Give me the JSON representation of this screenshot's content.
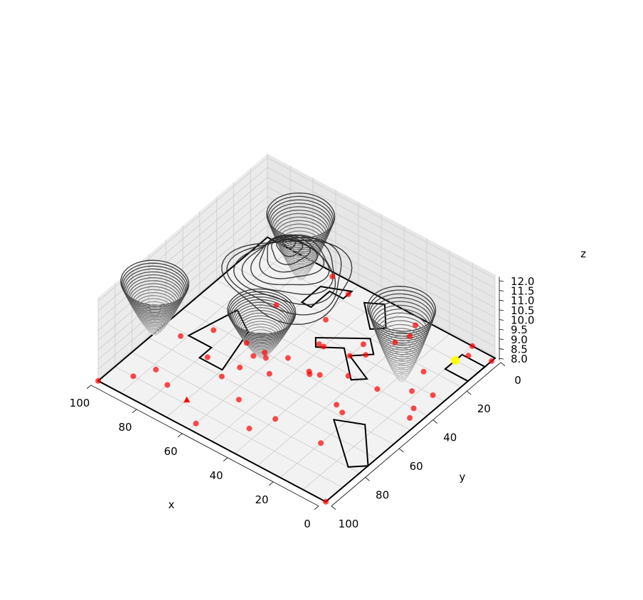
{
  "chart_data": {
    "type": "scatter",
    "projection": "3d",
    "title": "",
    "xlabel": "x",
    "ylabel": "y",
    "zlabel": "z",
    "xlim": [
      0,
      100
    ],
    "ylim": [
      0,
      100
    ],
    "zlim": [
      7.9,
      12.2
    ],
    "x_ticks": [
      "0",
      "20",
      "40",
      "60",
      "80",
      "100"
    ],
    "y_ticks": [
      "0",
      "20",
      "40",
      "60",
      "80",
      "100"
    ],
    "z_ticks": [
      "8.0",
      "8.5",
      "9.0",
      "9.5",
      "10.0",
      "10.5",
      "11.0",
      "11.5",
      "12.0"
    ],
    "grid": true,
    "colors": {
      "points": "#ff0000",
      "start_marker": "#ff0000",
      "goal_marker": "#ffff00",
      "walls": "#000000",
      "contours_dark": "#2a2a2a",
      "contours_light": "#d8d8d8",
      "pane": "#f2f2f2"
    },
    "boundary": [
      [
        0,
        0
      ],
      [
        100,
        0
      ],
      [
        100,
        100
      ],
      [
        0,
        100
      ]
    ],
    "obstacles": [
      [
        [
          85,
          38
        ],
        [
          90,
          60
        ],
        [
          80,
          60
        ],
        [
          80,
          67
        ],
        [
          70,
          67
        ],
        [
          75,
          45
        ]
      ],
      [
        [
          14,
          58
        ],
        [
          24,
          63
        ],
        [
          5,
          80
        ],
        [
          0,
          75
        ]
      ],
      [
        [
          28,
          38
        ],
        [
          32,
          42
        ],
        [
          44,
          30
        ],
        [
          52,
          36
        ],
        [
          55,
          32
        ],
        [
          40,
          20
        ],
        [
          34,
          26
        ],
        [
          40,
          32
        ]
      ],
      [
        [
          60,
          4
        ],
        [
          70,
          9
        ],
        [
          70,
          20
        ],
        [
          66,
          20
        ],
        [
          66,
          9
        ],
        [
          60,
          9
        ]
      ],
      [
        [
          47,
          2
        ],
        [
          53,
          6
        ],
        [
          43,
          16
        ],
        [
          39,
          12
        ]
      ],
      [
        [
          0,
          16
        ],
        [
          10,
          16
        ],
        [
          10,
          6
        ],
        [
          0,
          6
        ]
      ]
    ],
    "points": [
      [
        0,
        100
      ],
      [
        0,
        2
      ],
      [
        10,
        0
      ],
      [
        8,
        5
      ],
      [
        6,
        40
      ],
      [
        4,
        45
      ],
      [
        15,
        22
      ],
      [
        12,
        33
      ],
      [
        22,
        40
      ],
      [
        24,
        58
      ],
      [
        28,
        56
      ],
      [
        34,
        41
      ],
      [
        36,
        28
      ],
      [
        40,
        24
      ],
      [
        40,
        32
      ],
      [
        42,
        47
      ],
      [
        45,
        49
      ],
      [
        46,
        48
      ],
      [
        56,
        58
      ],
      [
        56,
        47
      ],
      [
        58,
        22
      ],
      [
        60,
        6
      ],
      [
        62,
        52
      ],
      [
        64,
        50
      ],
      [
        72,
        50
      ],
      [
        76,
        27
      ],
      [
        78,
        65
      ],
      [
        85,
        52
      ],
      [
        92,
        62
      ],
      [
        56,
        76
      ],
      [
        100,
        100
      ],
      [
        20,
        76
      ],
      [
        32,
        4
      ],
      [
        5,
        30
      ],
      [
        30,
        10
      ],
      [
        32,
        16
      ],
      [
        50,
        34
      ],
      [
        52,
        34
      ],
      [
        68,
        70
      ],
      [
        80,
        86
      ],
      [
        70,
        2
      ],
      [
        66,
        62
      ],
      [
        66,
        54
      ],
      [
        88,
        82
      ],
      [
        92,
        90
      ],
      [
        40,
        76
      ],
      [
        44,
        86
      ],
      [
        60,
        96
      ]
    ],
    "start": [
      70,
      88
    ],
    "goal": [
      10,
      10
    ],
    "surface_features": [
      {
        "kind": "well",
        "x": 72,
        "y": 18,
        "z_min": 8.75
      },
      {
        "kind": "well",
        "x": 52,
        "y": 68,
        "z_min": 9.7
      },
      {
        "kind": "well",
        "x": 15,
        "y": 35,
        "z_min": 8.3
      },
      {
        "kind": "well",
        "x": 90,
        "y": 80,
        "z_min": 9.4
      },
      {
        "kind": "peak",
        "x": 68,
        "y": 30,
        "z_max": 12.0
      }
    ]
  }
}
